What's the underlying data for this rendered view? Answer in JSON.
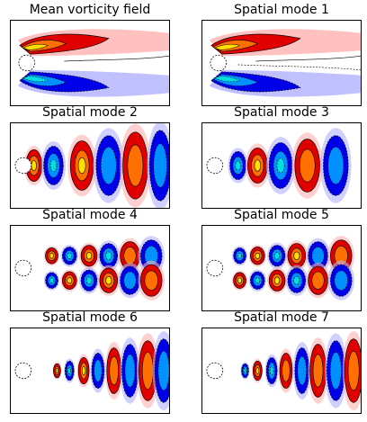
{
  "figure": {
    "panels": [
      {
        "title": "Mean vorticity field",
        "kind": "mean"
      },
      {
        "title": "Spatial mode 1",
        "kind": "mode1"
      },
      {
        "title": "Spatial mode 2",
        "kind": "mode2"
      },
      {
        "title": "Spatial mode 3",
        "kind": "mode3"
      },
      {
        "title": "Spatial mode 4",
        "kind": "mode4"
      },
      {
        "title": "Spatial mode 5",
        "kind": "mode5"
      },
      {
        "title": "Spatial mode 6",
        "kind": "mode6"
      },
      {
        "title": "Spatial mode 7",
        "kind": "mode7"
      }
    ]
  },
  "chart_data": {
    "type": "heatmap",
    "colormap": "bwr",
    "colors": {
      "positive": "#e00000",
      "negative": "#0000e8",
      "peak_positive": "#ffe000",
      "peak_negative": "#00e0e0",
      "zero": "#ffffff",
      "contour": "#000000"
    },
    "contour_lines": {
      "positive": "solid",
      "negative": "dashed"
    },
    "axes_ticks": false,
    "cylinder": "left"
  }
}
